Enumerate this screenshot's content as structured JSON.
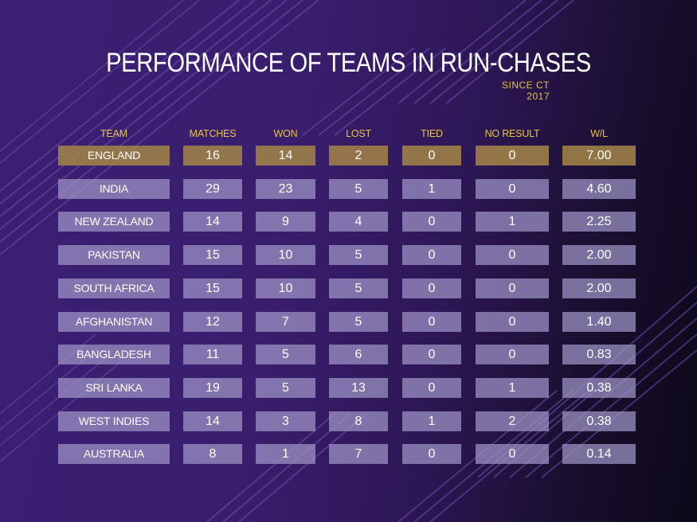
{
  "title": "PERFORMANCE OF TEAMS IN RUN-CHASES",
  "subtitle": "SINCE CT 2017",
  "colors": {
    "accent": "#e6c440",
    "highlight_row": "#9e8048",
    "row_cell": "#a096c8",
    "background": "#3b1f73"
  },
  "chart_data": {
    "type": "table",
    "title": "PERFORMANCE OF TEAMS IN RUN-CHASES",
    "subtitle": "SINCE CT 2017",
    "columns": [
      "TEAM",
      "MATCHES",
      "WON",
      "LOST",
      "TIED",
      "NO RESULT",
      "W/L"
    ],
    "rows": [
      [
        "ENGLAND",
        "16",
        "14",
        "2",
        "0",
        "0",
        "7.00"
      ],
      [
        "INDIA",
        "29",
        "23",
        "5",
        "1",
        "0",
        "4.60"
      ],
      [
        "NEW ZEALAND",
        "14",
        "9",
        "4",
        "0",
        "1",
        "2.25"
      ],
      [
        "PAKISTAN",
        "15",
        "10",
        "5",
        "0",
        "0",
        "2.00"
      ],
      [
        "SOUTH AFRICA",
        "15",
        "10",
        "5",
        "0",
        "0",
        "2.00"
      ],
      [
        "AFGHANISTAN",
        "12",
        "7",
        "5",
        "0",
        "0",
        "1.40"
      ],
      [
        "BANGLADESH",
        "11",
        "5",
        "6",
        "0",
        "0",
        "0.83"
      ],
      [
        "SRI LANKA",
        "19",
        "5",
        "13",
        "0",
        "1",
        "0.38"
      ],
      [
        "WEST INDIES",
        "14",
        "3",
        "8",
        "1",
        "2",
        "0.38"
      ],
      [
        "AUSTRALIA",
        "8",
        "1",
        "7",
        "0",
        "0",
        "0.14"
      ]
    ],
    "highlighted_row": 0
  }
}
